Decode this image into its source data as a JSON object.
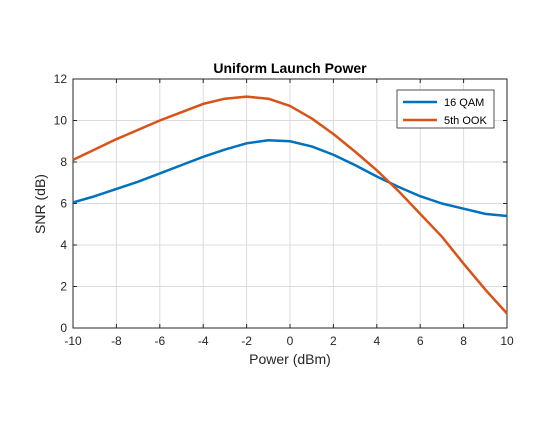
{
  "chart_data": {
    "type": "line",
    "title": "Uniform Launch Power",
    "xlabel": "Power (dBm)",
    "ylabel": "SNR (dB)",
    "xlim": [
      -10,
      10
    ],
    "ylim": [
      0,
      12
    ],
    "xticks": [
      -10,
      -8,
      -6,
      -4,
      -2,
      0,
      2,
      4,
      6,
      8,
      10
    ],
    "yticks": [
      0,
      2,
      4,
      6,
      8,
      10,
      12
    ],
    "grid": true,
    "legend_position": "top-right",
    "x": [
      -10,
      -9,
      -8,
      -7,
      -6,
      -5,
      -4,
      -3,
      -2,
      -1,
      0,
      1,
      2,
      3,
      4,
      5,
      6,
      7,
      8,
      9,
      10
    ],
    "series": [
      {
        "name": "16 QAM",
        "color": "#0072BD",
        "values": [
          6.05,
          6.35,
          6.7,
          7.05,
          7.45,
          7.85,
          8.25,
          8.6,
          8.9,
          9.05,
          9.0,
          8.75,
          8.35,
          7.85,
          7.3,
          6.8,
          6.35,
          6.0,
          5.75,
          5.5,
          5.4
        ]
      },
      {
        "name": "5th OOK",
        "color": "#D95319",
        "values": [
          8.1,
          8.6,
          9.1,
          9.55,
          10.0,
          10.4,
          10.8,
          11.05,
          11.15,
          11.05,
          10.7,
          10.1,
          9.35,
          8.5,
          7.6,
          6.6,
          5.5,
          4.4,
          3.1,
          1.85,
          0.7
        ]
      }
    ]
  }
}
